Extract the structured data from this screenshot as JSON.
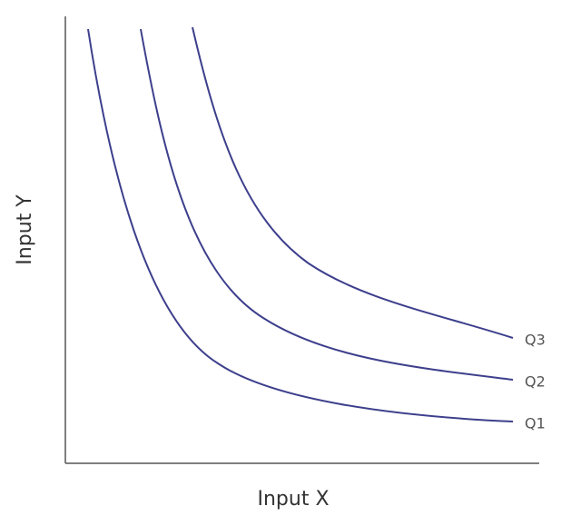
{
  "axes": {
    "x_label": "Input X",
    "y_label": "Input Y"
  },
  "curves": [
    {
      "label": "Q1"
    },
    {
      "label": "Q2"
    },
    {
      "label": "Q3"
    }
  ]
}
